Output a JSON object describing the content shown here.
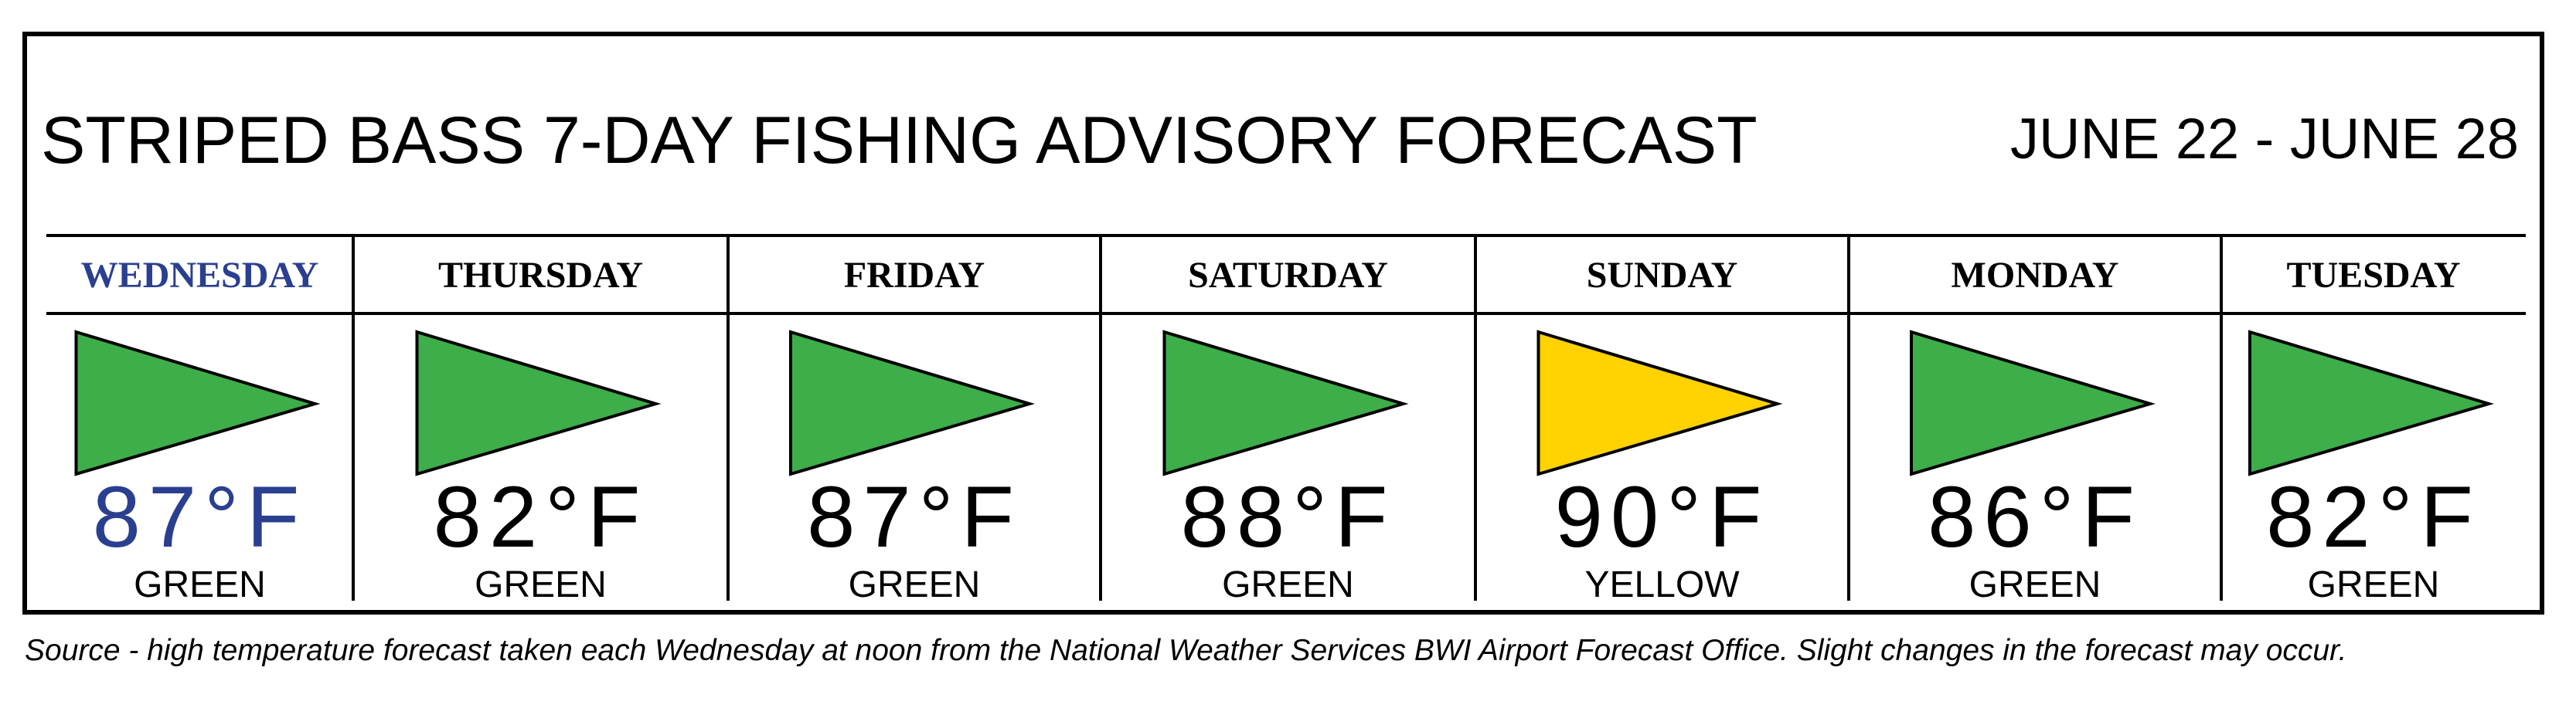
{
  "header": {
    "title": "STRIPED BASS 7-DAY FISHING ADVISORY FORECAST",
    "dates": "JUNE 22 - JUNE 28"
  },
  "days": [
    {
      "name": "WEDNESDAY",
      "temp": "87°F",
      "status": "GREEN",
      "flag_color": "#3dae49",
      "highlight": true
    },
    {
      "name": "THURSDAY",
      "temp": "82°F",
      "status": "GREEN",
      "flag_color": "#3dae49"
    },
    {
      "name": "FRIDAY",
      "temp": "87°F",
      "status": "GREEN",
      "flag_color": "#3dae49"
    },
    {
      "name": "SATURDAY",
      "temp": "88°F",
      "status": "GREEN",
      "flag_color": "#3dae49"
    },
    {
      "name": "SUNDAY",
      "temp": "90°F",
      "status": "YELLOW",
      "flag_color": "#ffd200"
    },
    {
      "name": "MONDAY",
      "temp": "86°F",
      "status": "GREEN",
      "flag_color": "#3dae49"
    },
    {
      "name": "TUESDAY",
      "temp": "82°F",
      "status": "GREEN",
      "flag_color": "#3dae49"
    }
  ],
  "footer": {
    "source": "Source - high temperature forecast taken each Wednesday at noon from the National Weather Services BWI Airport Forecast Office. Slight changes in the forecast may occur."
  }
}
